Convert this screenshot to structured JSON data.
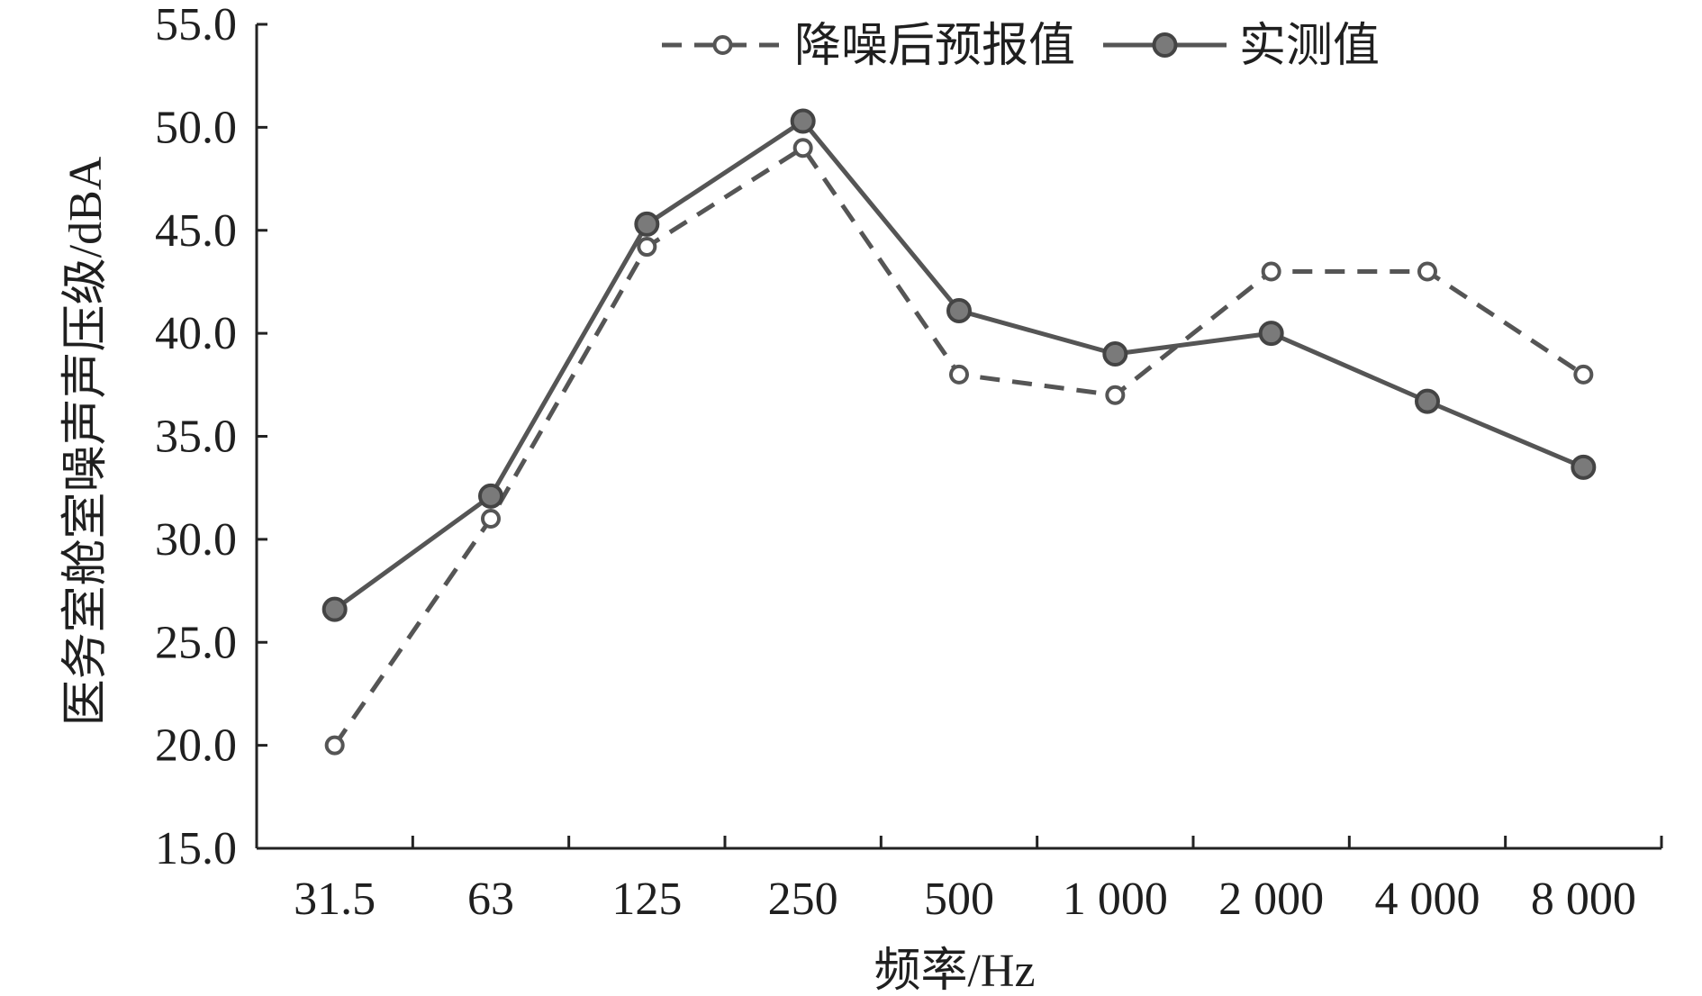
{
  "chart_data": {
    "type": "line",
    "title": "",
    "xlabel": "频率/Hz",
    "ylabel": "医务室舱室噪声声压级/dBA",
    "categories": [
      "31.5",
      "63",
      "125",
      "250",
      "500",
      "1 000",
      "2 000",
      "4 000",
      "8 000"
    ],
    "ylim": [
      15.0,
      55.0
    ],
    "yticks": [
      "15.0",
      "20.0",
      "25.0",
      "30.0",
      "35.0",
      "40.0",
      "45.0",
      "50.0",
      "55.0"
    ],
    "grid": false,
    "legend_position": "top",
    "series": [
      {
        "name": "降噪后预报值",
        "style": "dashed",
        "marker": "open-circle",
        "color": "#555555",
        "values": [
          20.0,
          31.0,
          44.2,
          49.0,
          38.0,
          37.0,
          43.0,
          43.0,
          38.0
        ]
      },
      {
        "name": "实测值",
        "style": "solid",
        "marker": "filled-circle",
        "color": "#555555",
        "values": [
          26.6,
          32.1,
          45.3,
          50.3,
          41.1,
          39.0,
          40.0,
          36.7,
          33.5
        ]
      }
    ]
  }
}
